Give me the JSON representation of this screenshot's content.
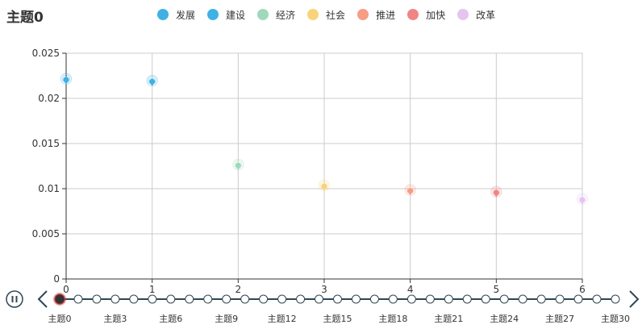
{
  "title": "主题0",
  "colors": {
    "axis": "#333333",
    "grid": "#cccccc",
    "timeline": "#304654",
    "timeline_current": "#c23531",
    "timeline_current_inner": "#333333"
  },
  "legend": {
    "items": [
      {
        "label": "发展",
        "color": "#3fb1e3"
      },
      {
        "label": "建设",
        "color": "#3fb1e3"
      },
      {
        "label": "经济",
        "color": "#a0d8bb"
      },
      {
        "label": "社会",
        "color": "#f8d37a"
      },
      {
        "label": "推进",
        "color": "#f79d84"
      },
      {
        "label": "加快",
        "color": "#f08586"
      },
      {
        "label": "改革",
        "color": "#e3c5ef"
      }
    ]
  },
  "chart_data": {
    "type": "scatter",
    "title": "主题0",
    "xlabel": "",
    "ylabel": "",
    "xlim": [
      0,
      6
    ],
    "ylim": [
      0,
      0.025
    ],
    "x_ticks": [
      "0",
      "1",
      "2",
      "3",
      "4",
      "5",
      "6"
    ],
    "y_ticks": [
      "0",
      "0.005",
      "0.01",
      "0.015",
      "0.02",
      "0.025"
    ],
    "grid": true,
    "legend_position": "top-center",
    "series": [
      {
        "name": "发展",
        "color": "#3fb1e3",
        "x": 0,
        "value": 0.0219
      },
      {
        "name": "建设",
        "color": "#3fb1e3",
        "x": 1,
        "value": 0.0217
      },
      {
        "name": "经济",
        "color": "#a0d8bb",
        "x": 2,
        "value": 0.0124
      },
      {
        "name": "社会",
        "color": "#f8d37a",
        "x": 3,
        "value": 0.0101
      },
      {
        "name": "推进",
        "color": "#f79d84",
        "x": 4,
        "value": 0.0096
      },
      {
        "name": "加快",
        "color": "#f08586",
        "x": 5,
        "value": 0.0094
      },
      {
        "name": "改革",
        "color": "#e3c5ef",
        "x": 6,
        "value": 0.0086
      }
    ]
  },
  "timeline": {
    "node_count": 31,
    "current_index": 0,
    "labels": [
      "主题0",
      "主题3",
      "主题6",
      "主题9",
      "主题12",
      "主题15",
      "主题18",
      "主题21",
      "主题24",
      "主题27",
      "主题30"
    ],
    "label_step": 3,
    "play_icon": "pause-icon",
    "prev_icon": "chevron-left-icon",
    "next_icon": "chevron-right-icon"
  }
}
